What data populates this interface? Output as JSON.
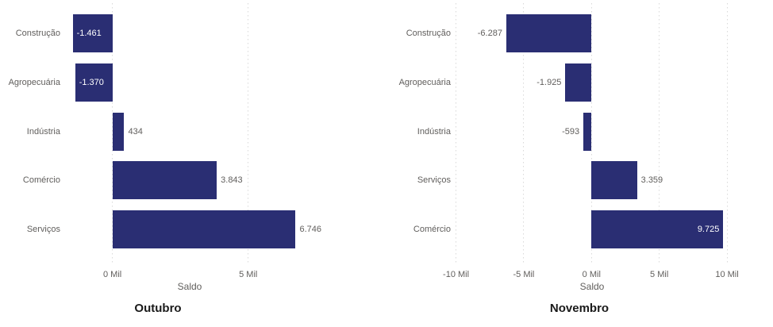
{
  "colors": {
    "bar_fill": "#2a2e73",
    "label_gray": "#605e5c",
    "label_inside_bar": "#ffffff",
    "gridline": "#d9d9d9",
    "title_text": "#1a1a1a"
  },
  "chart_data": [
    {
      "type": "bar",
      "orientation": "horizontal",
      "title": "Outubro",
      "xlabel": "Saldo",
      "ylabel": "",
      "legend": "none",
      "grid": "vertical-dotted",
      "categories": [
        "Construção",
        "Agropecuária",
        "Indústria",
        "Comércio",
        "Serviços"
      ],
      "values": [
        -1461,
        -1370,
        434,
        3843,
        6746
      ],
      "value_labels": [
        "-1.461",
        "-1.370",
        "434",
        "3.843",
        "6.746"
      ],
      "xlim": [
        -1800,
        7900
      ],
      "ticks": [
        {
          "value": 0,
          "label": "0 Mil"
        },
        {
          "value": 5000,
          "label": "5 Mil"
        }
      ]
    },
    {
      "type": "bar",
      "orientation": "horizontal",
      "title": "Novembro",
      "xlabel": "Saldo",
      "ylabel": "",
      "legend": "none",
      "grid": "vertical-dotted",
      "categories": [
        "Construção",
        "Agropecuária",
        "Indústria",
        "Serviços",
        "Comércio"
      ],
      "values": [
        -6287,
        -1925,
        -593,
        3359,
        9725
      ],
      "value_labels": [
        "-6.287",
        "-1.925",
        "-593",
        "3.359",
        "9.725"
      ],
      "xlim": [
        -10150,
        10350
      ],
      "ticks": [
        {
          "value": -10000,
          "label": "-10 Mil"
        },
        {
          "value": -5000,
          "label": "-5 Mil"
        },
        {
          "value": 0,
          "label": "0 Mil"
        },
        {
          "value": 5000,
          "label": "5 Mil"
        },
        {
          "value": 10000,
          "label": "10 Mil"
        }
      ]
    }
  ]
}
